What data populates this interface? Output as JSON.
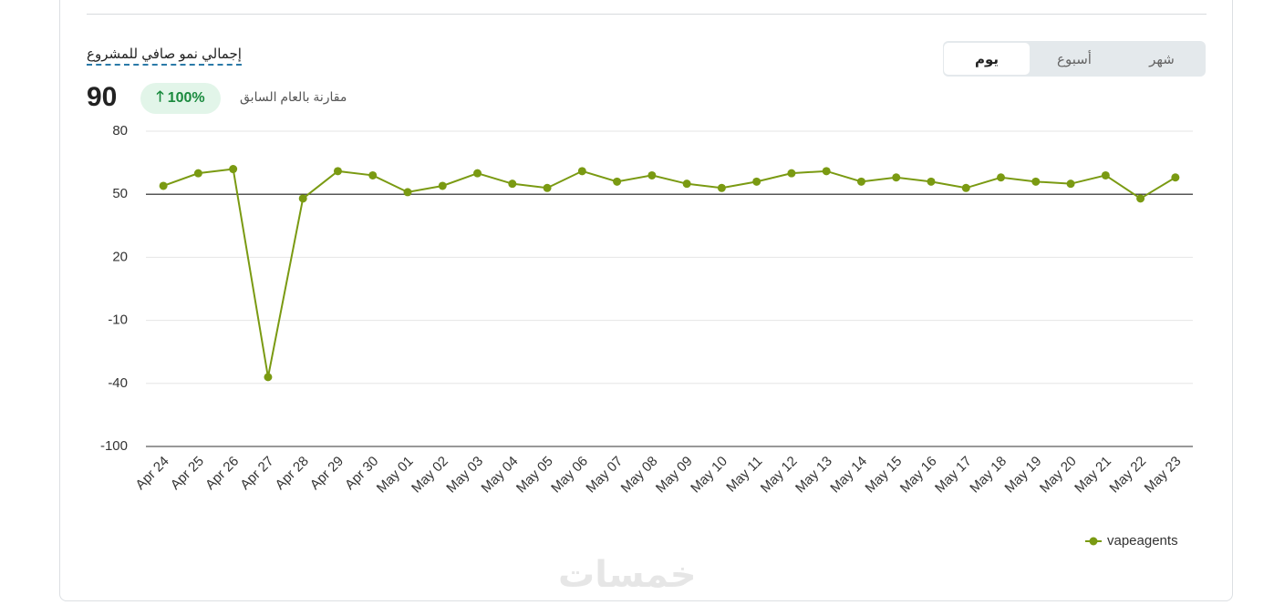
{
  "summary": {
    "title": "إجمالي نمو صافي للمشروع",
    "value": "90",
    "change": "100%",
    "comparison": "مقارنة بالعام السابق"
  },
  "tabs": [
    "يوم",
    "أسبوع",
    "شهر"
  ],
  "chart_data": {
    "type": "line",
    "categories": [
      "Apr 24",
      "Apr 25",
      "Apr 26",
      "Apr 27",
      "Apr 28",
      "Apr 29",
      "Apr 30",
      "May 01",
      "May 02",
      "May 03",
      "May 04",
      "May 05",
      "May 06",
      "May 07",
      "May 08",
      "May 09",
      "May 10",
      "May 11",
      "May 12",
      "May 13",
      "May 14",
      "May 15",
      "May 16",
      "May 17",
      "May 18",
      "May 19",
      "May 20",
      "May 21",
      "May 22",
      "May 23"
    ],
    "series": [
      {
        "name": "vapeagents",
        "color": "#7a9a12",
        "values": [
          54,
          60,
          62,
          -37,
          48,
          61,
          59,
          51,
          54,
          60,
          55,
          53,
          61,
          56,
          59,
          55,
          53,
          56,
          60,
          61,
          56,
          58,
          56,
          53,
          58,
          56,
          55,
          59,
          48,
          58
        ]
      }
    ],
    "ylim": [
      -100,
      80
    ],
    "yticks": [
      -100,
      -40,
      -10,
      20,
      50,
      80
    ],
    "reference_line": 50,
    "grid": true,
    "legend": "bottom-right"
  },
  "watermark": "خمسات"
}
